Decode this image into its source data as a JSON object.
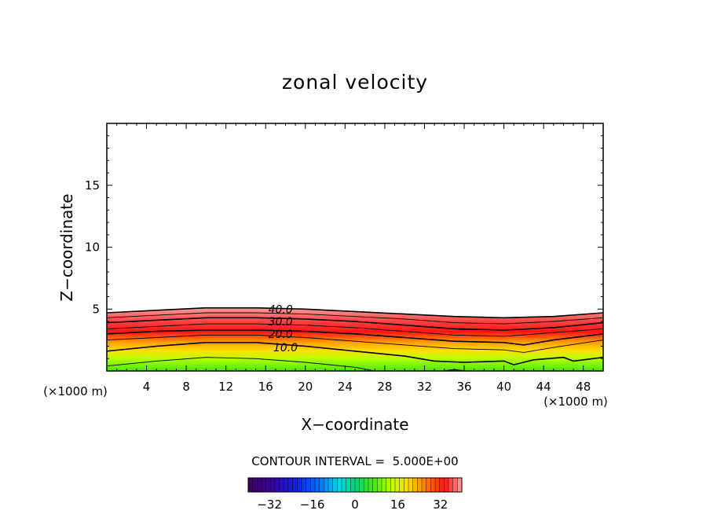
{
  "chart_data": {
    "type": "contour",
    "title": "zonal velocity",
    "xlabel": "X−coordinate",
    "ylabel": "Z−coordinate",
    "xlim": [
      0,
      50
    ],
    "ylim": [
      0,
      20
    ],
    "x_ticks": [
      4,
      8,
      12,
      16,
      20,
      24,
      28,
      32,
      36,
      40,
      44,
      48
    ],
    "y_ticks": [
      5,
      10,
      15
    ],
    "x_units": "(×1000 m)",
    "z_units": "(×1000 m)",
    "contour_interval_text": "CONTOUR INTERVAL =  5.000E+00",
    "contour_levels": [
      0,
      5,
      10,
      15,
      20,
      25,
      30,
      35,
      40
    ],
    "contour_labels": [
      {
        "text": "40.0",
        "x": 17.5,
        "z": 5.0
      },
      {
        "text": "30.0",
        "x": 17.5,
        "z": 4.0
      },
      {
        "text": "20.0",
        "x": 17.5,
        "z": 3.0
      },
      {
        "text": "10.0",
        "x": 18.0,
        "z": 1.9
      }
    ],
    "contours": [
      {
        "level": 40,
        "points": [
          [
            0,
            4.7
          ],
          [
            5,
            4.9
          ],
          [
            10,
            5.1
          ],
          [
            15,
            5.1
          ],
          [
            20,
            5.0
          ],
          [
            25,
            4.8
          ],
          [
            30,
            4.6
          ],
          [
            35,
            4.4
          ],
          [
            40,
            4.3
          ],
          [
            45,
            4.4
          ],
          [
            50,
            4.7
          ]
        ]
      },
      {
        "level": 35,
        "points": [
          [
            0,
            4.3
          ],
          [
            5,
            4.5
          ],
          [
            10,
            4.7
          ],
          [
            15,
            4.7
          ],
          [
            20,
            4.6
          ],
          [
            25,
            4.4
          ],
          [
            30,
            4.2
          ],
          [
            35,
            3.9
          ],
          [
            40,
            3.8
          ],
          [
            45,
            4.0
          ],
          [
            50,
            4.3
          ]
        ]
      },
      {
        "level": 30,
        "points": [
          [
            0,
            3.9
          ],
          [
            5,
            4.1
          ],
          [
            10,
            4.3
          ],
          [
            15,
            4.3
          ],
          [
            20,
            4.2
          ],
          [
            25,
            4.0
          ],
          [
            30,
            3.7
          ],
          [
            35,
            3.4
          ],
          [
            40,
            3.3
          ],
          [
            45,
            3.5
          ],
          [
            50,
            3.9
          ]
        ]
      },
      {
        "level": 25,
        "points": [
          [
            0,
            3.4
          ],
          [
            5,
            3.6
          ],
          [
            10,
            3.8
          ],
          [
            15,
            3.8
          ],
          [
            20,
            3.7
          ],
          [
            25,
            3.5
          ],
          [
            30,
            3.2
          ],
          [
            35,
            2.9
          ],
          [
            40,
            2.8
          ],
          [
            45,
            3.1
          ],
          [
            50,
            3.4
          ]
        ]
      },
      {
        "level": 20,
        "points": [
          [
            0,
            3.0
          ],
          [
            5,
            3.2
          ],
          [
            10,
            3.3
          ],
          [
            15,
            3.3
          ],
          [
            20,
            3.2
          ],
          [
            25,
            3.0
          ],
          [
            30,
            2.7
          ],
          [
            35,
            2.4
          ],
          [
            40,
            2.3
          ],
          [
            42,
            2.1
          ],
          [
            45,
            2.5
          ],
          [
            50,
            3.0
          ]
        ]
      },
      {
        "level": 15,
        "points": [
          [
            0,
            2.5
          ],
          [
            5,
            2.7
          ],
          [
            10,
            2.9
          ],
          [
            15,
            2.9
          ],
          [
            20,
            2.7
          ],
          [
            25,
            2.4
          ],
          [
            30,
            2.1
          ],
          [
            35,
            1.8
          ],
          [
            40,
            1.7
          ],
          [
            42,
            1.5
          ],
          [
            45,
            1.9
          ],
          [
            50,
            2.5
          ]
        ]
      },
      {
        "level": 10,
        "points": [
          [
            0,
            1.6
          ],
          [
            5,
            2.0
          ],
          [
            10,
            2.3
          ],
          [
            15,
            2.3
          ],
          [
            20,
            2.0
          ],
          [
            25,
            1.6
          ],
          [
            30,
            1.2
          ],
          [
            33,
            0.8
          ],
          [
            36,
            0.7
          ],
          [
            40,
            0.8
          ],
          [
            41,
            0.5
          ],
          [
            43,
            0.9
          ],
          [
            46,
            1.1
          ],
          [
            47,
            0.8
          ],
          [
            50,
            1.1
          ]
        ]
      },
      {
        "level": 5,
        "points": [
          [
            0,
            0.4
          ],
          [
            5,
            0.8
          ],
          [
            10,
            1.1
          ],
          [
            15,
            1.0
          ],
          [
            20,
            0.7
          ],
          [
            25,
            0.3
          ],
          [
            27,
            0.0
          ]
        ]
      },
      {
        "level": 0,
        "points": [
          [
            34,
            0.0
          ],
          [
            35,
            0.1
          ],
          [
            36,
            0.0
          ]
        ]
      }
    ],
    "colorbar": {
      "min": -40,
      "max": 40,
      "ticks": [
        -32,
        -16,
        0,
        16,
        32
      ]
    },
    "colors": {
      "top": "#ff9d9d",
      "peak": "#ff1010",
      "mid": "#ffd200",
      "low": "#93ff00",
      "bottom": "#4ae80c"
    }
  }
}
